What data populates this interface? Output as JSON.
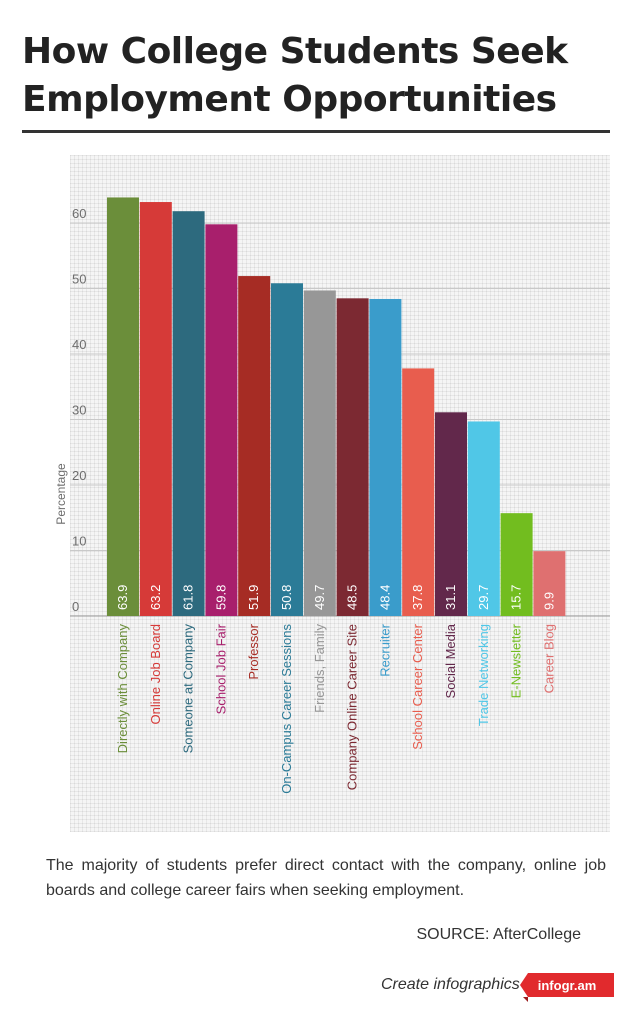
{
  "title_line1": "How College Students Seek",
  "title_line2": "Employment Opportunities",
  "caption": "The majority of students prefer direct contact with the company, online job boards and college career fairs when seeking employment.",
  "source": "SOURCE: AfterCollege",
  "credit_text": "Create infographics",
  "credit_logo": "infogr.am",
  "chart_data": {
    "type": "bar",
    "ylabel": "Percentage",
    "ylim": [
      0,
      70
    ],
    "yticks": [
      0,
      10,
      20,
      30,
      40,
      50,
      60
    ],
    "grid": true,
    "categories": [
      "Directly with Company",
      "Online Job Board",
      "Someone at Company",
      "School Job Fair",
      "Professor",
      "On-Campus Career Sessions",
      "Friends, Family",
      "Company Online Career Site",
      "Recruiter",
      "School Career Center",
      "Social Media",
      "Trade Networking",
      "E-Newsletter",
      "Career Blog"
    ],
    "values": [
      63.9,
      63.2,
      61.8,
      59.8,
      51.9,
      50.8,
      49.7,
      48.5,
      48.4,
      37.8,
      31.1,
      29.7,
      15.7,
      9.9
    ],
    "value_labels": [
      "63.9",
      "63.2",
      "61.8",
      "59.8",
      "51.9",
      "50.8",
      "49.7",
      "48.5",
      "48.4",
      "37.8",
      "31.1",
      "29.7",
      "15.7",
      "9.9"
    ],
    "colors": [
      "#6b8e3a",
      "#d63a38",
      "#2d6a7e",
      "#a81f6c",
      "#a62c24",
      "#2b7b97",
      "#979797",
      "#7c2932",
      "#3a9ccb",
      "#e85d4e",
      "#62284b",
      "#50c7e7",
      "#72bd1f",
      "#df7070"
    ]
  }
}
